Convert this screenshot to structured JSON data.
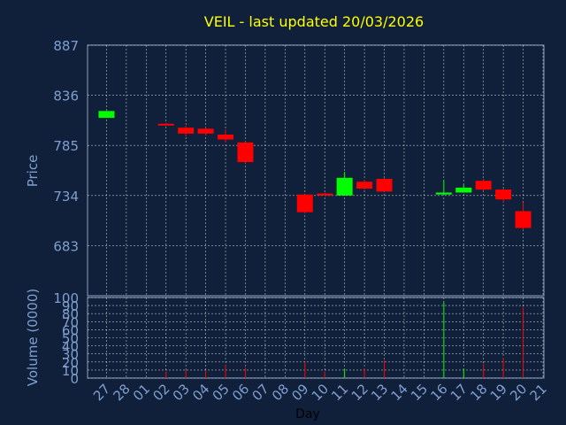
{
  "chart_data": {
    "type": "candlestick",
    "title": "VEIL - last updated 20/03/2026",
    "xlabel": "Day",
    "ylabel": "Price",
    "volume_ylabel": "Volume (0000)",
    "grid": true,
    "x_ticks": [
      "27",
      "28",
      "01",
      "02",
      "03",
      "04",
      "05",
      "06",
      "07",
      "08",
      "09",
      "10",
      "11",
      "12",
      "13",
      "14",
      "15",
      "16",
      "17",
      "18",
      "19",
      "20",
      "21"
    ],
    "y_ticks": [
      "887",
      "836",
      "785",
      "734",
      "683"
    ],
    "ylim": [
      632,
      887
    ],
    "volume_ticks": [
      "100",
      "90",
      "80",
      "70",
      "60",
      "50",
      "40",
      "30",
      "20",
      "10",
      "0"
    ],
    "volume_ylim": [
      0,
      100
    ],
    "colors": {
      "background": "#10203a",
      "plot_bg": "#10203a",
      "up": "#00ff00",
      "down": "#ff0000",
      "title": "#ffff00",
      "axis_text": "#7f9fd0",
      "frame": "#8fa0c0",
      "grid": "#ffffff"
    },
    "candles": [
      {
        "day": "27",
        "open": 813,
        "high": 820,
        "low": 813,
        "close": 820,
        "volume": 0
      },
      {
        "day": "02",
        "open": 807,
        "high": 808,
        "low": 806,
        "close": 806,
        "volume": 8
      },
      {
        "day": "03",
        "open": 803,
        "high": 805,
        "low": 794,
        "close": 797,
        "volume": 10
      },
      {
        "day": "04",
        "open": 802,
        "high": 803,
        "low": 795,
        "close": 797,
        "volume": 9
      },
      {
        "day": "05",
        "open": 796,
        "high": 801,
        "low": 788,
        "close": 791,
        "volume": 16
      },
      {
        "day": "06",
        "open": 788,
        "high": 789,
        "low": 767,
        "close": 768,
        "volume": 13
      },
      {
        "day": "09",
        "open": 735,
        "high": 735,
        "low": 716,
        "close": 717,
        "volume": 20
      },
      {
        "day": "10",
        "open": 736,
        "high": 737,
        "low": 734,
        "close": 734,
        "volume": 8
      },
      {
        "day": "11",
        "open": 734,
        "high": 758,
        "low": 734,
        "close": 752,
        "volume": 11
      },
      {
        "day": "12",
        "open": 748,
        "high": 750,
        "low": 740,
        "close": 741,
        "volume": 12
      },
      {
        "day": "13",
        "open": 751,
        "high": 752,
        "low": 738,
        "close": 738,
        "volume": 22
      },
      {
        "day": "16",
        "open": 735,
        "high": 750,
        "low": 735,
        "close": 737,
        "volume": 95
      },
      {
        "day": "17",
        "open": 737,
        "high": 745,
        "low": 737,
        "close": 742,
        "volume": 12
      },
      {
        "day": "18",
        "open": 749,
        "high": 751,
        "low": 739,
        "close": 740,
        "volume": 18
      },
      {
        "day": "19",
        "open": 740,
        "high": 741,
        "low": 727,
        "close": 730,
        "volume": 25
      },
      {
        "day": "20",
        "open": 718,
        "high": 727,
        "low": 699,
        "close": 701,
        "volume": 88
      }
    ]
  }
}
